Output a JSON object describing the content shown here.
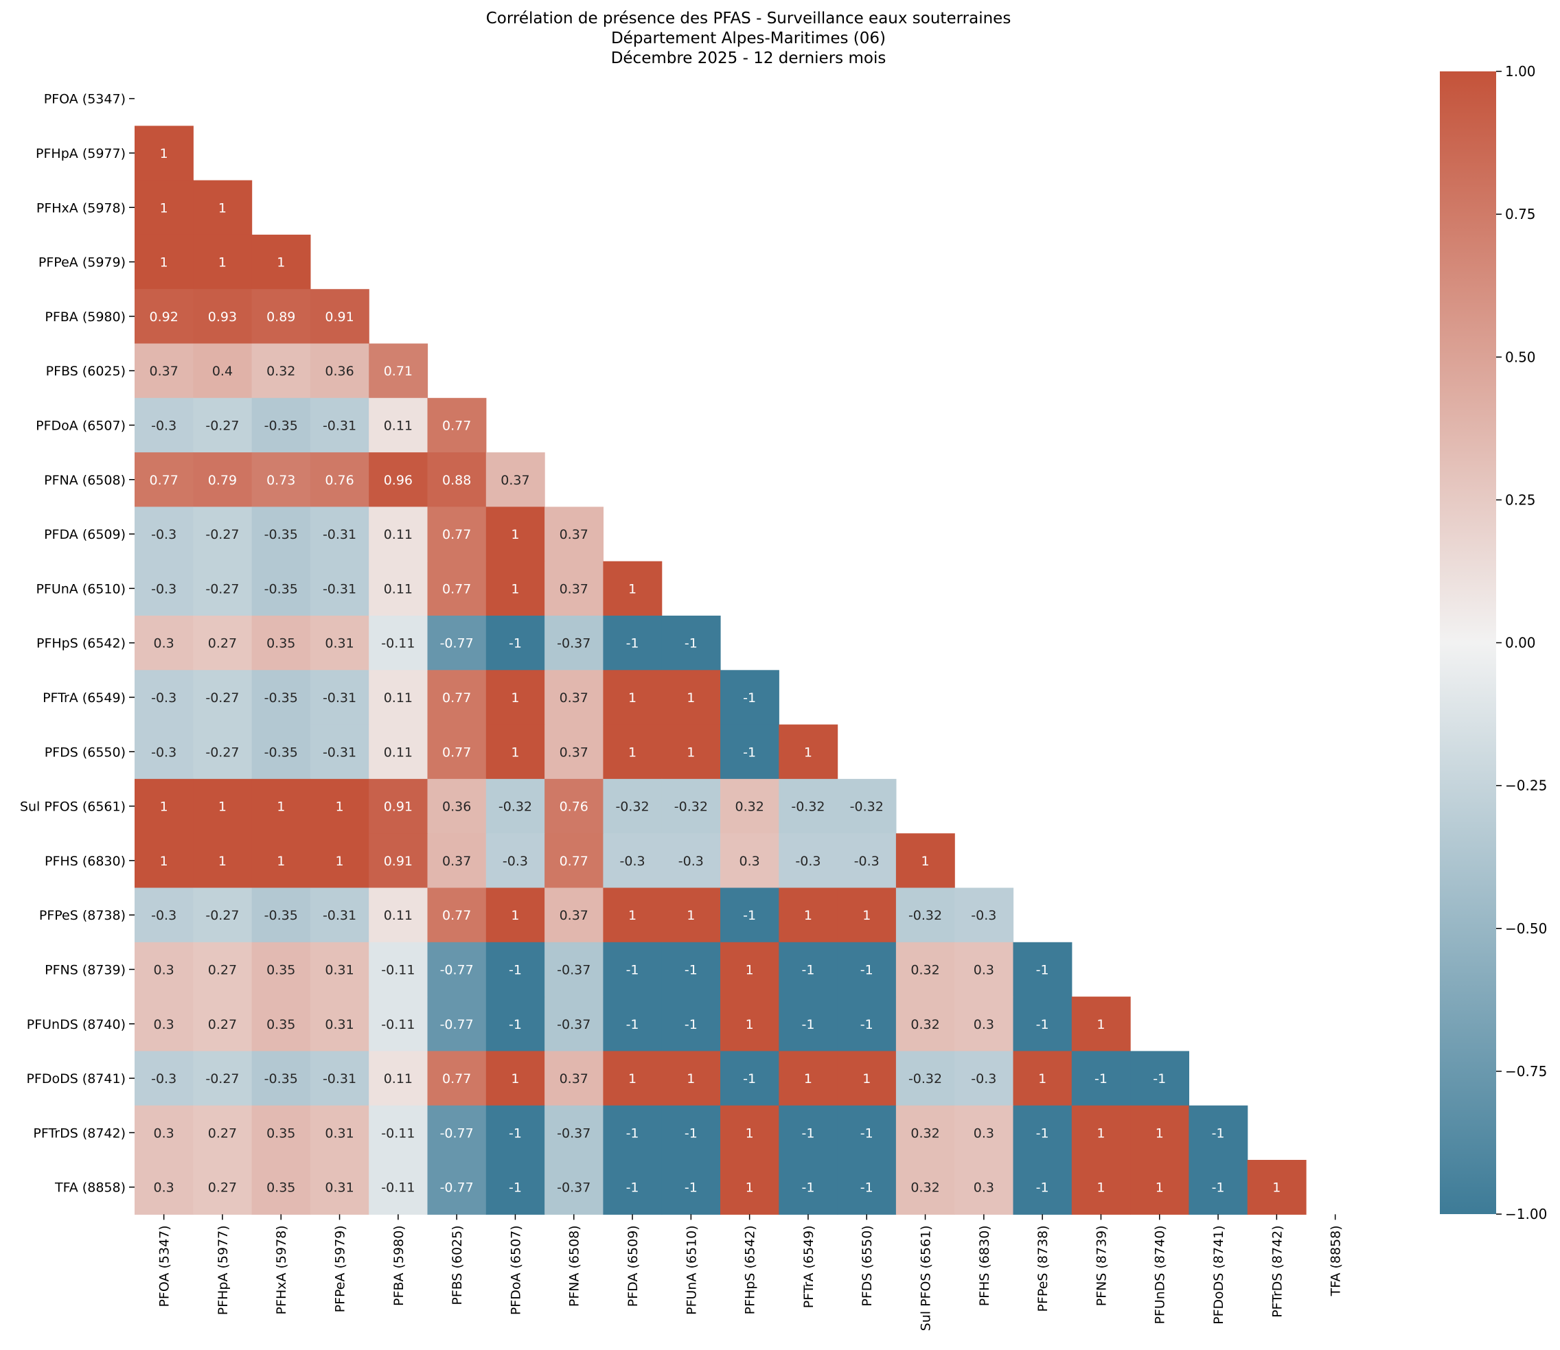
{
  "chart_data": {
    "type": "heatmap",
    "title_lines": [
      "Corrélation de présence des PFAS - Surveillance eaux souterraines",
      "Département Alpes-Maritimes (06)",
      "Décembre 2025 - 12 derniers mois"
    ],
    "mask": "upper-triangle-including-diagonal",
    "labels": [
      "PFOA (5347)",
      "PFHpA (5977)",
      "PFHxA (5978)",
      "PFPeA (5979)",
      "PFBA (5980)",
      "PFBS (6025)",
      "PFDoA (6507)",
      "PFNA (6508)",
      "PFDA (6509)",
      "PFUnA (6510)",
      "PFHpS (6542)",
      "PFTrA (6549)",
      "PFDS (6550)",
      "Sul PFOS (6561)",
      "PFHS (6830)",
      "PFPeS (8738)",
      "PFNS (8739)",
      "PFUnDS (8740)",
      "PFDoDS (8741)",
      "PFTrDS (8742)",
      "TFA (8858)"
    ],
    "rows": [
      [],
      [
        "1"
      ],
      [
        "1",
        "1"
      ],
      [
        "1",
        "1",
        "1"
      ],
      [
        "0.92",
        "0.93",
        "0.89",
        "0.91"
      ],
      [
        "0.37",
        "0.4",
        "0.32",
        "0.36",
        "0.71"
      ],
      [
        "-0.3",
        "-0.27",
        "-0.35",
        "-0.31",
        "0.11",
        "0.77"
      ],
      [
        "0.77",
        "0.79",
        "0.73",
        "0.76",
        "0.96",
        "0.88",
        "0.37"
      ],
      [
        "-0.3",
        "-0.27",
        "-0.35",
        "-0.31",
        "0.11",
        "0.77",
        "1",
        "0.37"
      ],
      [
        "-0.3",
        "-0.27",
        "-0.35",
        "-0.31",
        "0.11",
        "0.77",
        "1",
        "0.37",
        "1"
      ],
      [
        "0.3",
        "0.27",
        "0.35",
        "0.31",
        "-0.11",
        "-0.77",
        "-1",
        "-0.37",
        "-1",
        "-1"
      ],
      [
        "-0.3",
        "-0.27",
        "-0.35",
        "-0.31",
        "0.11",
        "0.77",
        "1",
        "0.37",
        "1",
        "1",
        "-1"
      ],
      [
        "-0.3",
        "-0.27",
        "-0.35",
        "-0.31",
        "0.11",
        "0.77",
        "1",
        "0.37",
        "1",
        "1",
        "-1",
        "1"
      ],
      [
        "1",
        "1",
        "1",
        "1",
        "0.91",
        "0.36",
        "-0.32",
        "0.76",
        "-0.32",
        "-0.32",
        "0.32",
        "-0.32",
        "-0.32"
      ],
      [
        "1",
        "1",
        "1",
        "1",
        "0.91",
        "0.37",
        "-0.3",
        "0.77",
        "-0.3",
        "-0.3",
        "0.3",
        "-0.3",
        "-0.3",
        "1"
      ],
      [
        "-0.3",
        "-0.27",
        "-0.35",
        "-0.31",
        "0.11",
        "0.77",
        "1",
        "0.37",
        "1",
        "1",
        "-1",
        "1",
        "1",
        "-0.32",
        "-0.3"
      ],
      [
        "0.3",
        "0.27",
        "0.35",
        "0.31",
        "-0.11",
        "-0.77",
        "-1",
        "-0.37",
        "-1",
        "-1",
        "1",
        "-1",
        "-1",
        "0.32",
        "0.3",
        "-1"
      ],
      [
        "0.3",
        "0.27",
        "0.35",
        "0.31",
        "-0.11",
        "-0.77",
        "-1",
        "-0.37",
        "-1",
        "-1",
        "1",
        "-1",
        "-1",
        "0.32",
        "0.3",
        "-1",
        "1"
      ],
      [
        "-0.3",
        "-0.27",
        "-0.35",
        "-0.31",
        "0.11",
        "0.77",
        "1",
        "0.37",
        "1",
        "1",
        "-1",
        "1",
        "1",
        "-0.32",
        "-0.3",
        "1",
        "-1",
        "-1"
      ],
      [
        "0.3",
        "0.27",
        "0.35",
        "0.31",
        "-0.11",
        "-0.77",
        "-1",
        "-0.37",
        "-1",
        "-1",
        "1",
        "-1",
        "-1",
        "0.32",
        "0.3",
        "-1",
        "1",
        "1",
        "-1"
      ],
      [
        "0.3",
        "0.27",
        "0.35",
        "0.31",
        "-0.11",
        "-0.77",
        "-1",
        "-0.37",
        "-1",
        "-1",
        "1",
        "-1",
        "-1",
        "0.32",
        "0.3",
        "-1",
        "1",
        "1",
        "-1",
        "1"
      ]
    ],
    "colorbar": {
      "vmin": -1.0,
      "vmax": 1.0,
      "ticks": [
        "1.00",
        "0.75",
        "0.50",
        "0.25",
        "0.00",
        "−0.25",
        "−0.50",
        "−0.75",
        "−1.00"
      ],
      "tick_values": [
        1.0,
        0.75,
        0.5,
        0.25,
        0.0,
        -0.25,
        -0.5,
        -0.75,
        -1.0
      ]
    },
    "colors": {
      "negative": "#3d7b97",
      "neutral": "#f2f2f2",
      "positive": "#c4533a",
      "text_light": "#ffffff",
      "text_dark": "#262626"
    }
  }
}
